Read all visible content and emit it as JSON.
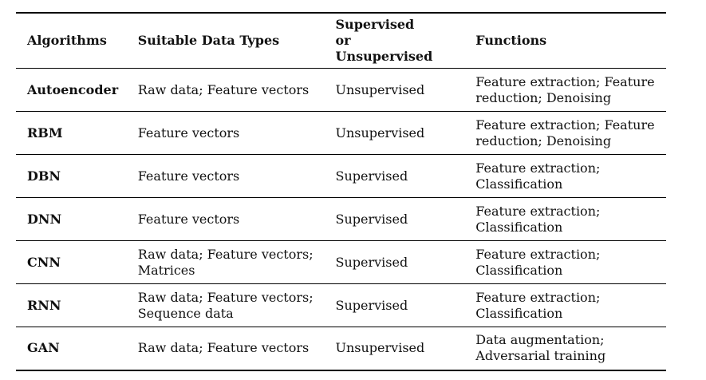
{
  "table": {
    "headers": [
      "Algorithms",
      "Suitable Data Types",
      "Supervised or Unsupervised",
      "Functions"
    ],
    "rows": [
      [
        "Autoencoder",
        "Raw data; Feature vectors",
        "Unsupervised",
        "Feature extraction; Feature reduction; Denoising"
      ],
      [
        "RBM",
        "Feature vectors",
        "Unsupervised",
        "Feature extraction; Feature reduction; Denoising"
      ],
      [
        "DBN",
        "Feature vectors",
        "Supervised",
        "Feature extraction; Classification"
      ],
      [
        "DNN",
        "Feature vectors",
        "Supervised",
        "Feature extraction; Classification"
      ],
      [
        "CNN",
        "Raw data; Feature vectors; Matrices",
        "Supervised",
        "Feature extraction; Classification"
      ],
      [
        "RNN",
        "Raw data; Feature vectors; Sequence data",
        "Supervised",
        "Feature extraction; Classification"
      ],
      [
        "GAN",
        "Raw data; Feature vectors",
        "Unsupervised",
        "Data augmentation; Adversarial training"
      ]
    ]
  }
}
